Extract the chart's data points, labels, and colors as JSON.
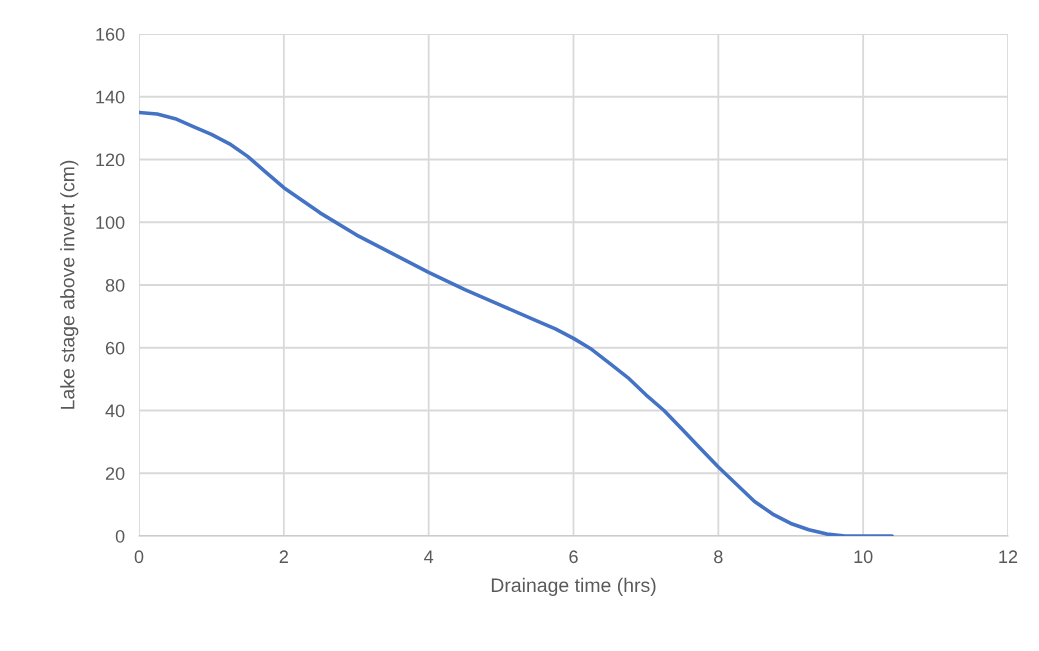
{
  "chart_data": {
    "type": "line",
    "xlabel": "Drainage time (hrs)",
    "ylabel": "Lake stage above invert (cm)",
    "x": [
      0,
      0.25,
      0.5,
      0.75,
      1,
      1.25,
      1.5,
      1.75,
      2,
      2.5,
      3,
      3.5,
      4,
      4.5,
      5,
      5.5,
      5.75,
      6,
      6.25,
      6.5,
      6.75,
      7,
      7.25,
      7.5,
      7.75,
      8,
      8.25,
      8.5,
      8.75,
      9,
      9.25,
      9.5,
      9.75,
      10,
      10.4
    ],
    "series": [
      {
        "color": "#4472c4",
        "values": [
          135,
          134.5,
          133,
          130.5,
          128,
          125,
          121,
          116,
          111,
          103,
          96,
          90,
          84,
          78.5,
          73.5,
          68.5,
          66,
          63,
          59.5,
          55,
          50.5,
          45,
          40,
          34,
          28,
          22,
          16.5,
          11,
          7,
          4,
          2,
          0.6,
          0,
          0,
          0
        ]
      }
    ],
    "xlim": [
      0,
      12
    ],
    "xticks": [
      0,
      2,
      4,
      6,
      8,
      10,
      12
    ],
    "ylim": [
      0,
      160
    ],
    "yticks": [
      0,
      20,
      40,
      60,
      80,
      100,
      120,
      140,
      160
    ],
    "grid": true,
    "legend": false
  }
}
